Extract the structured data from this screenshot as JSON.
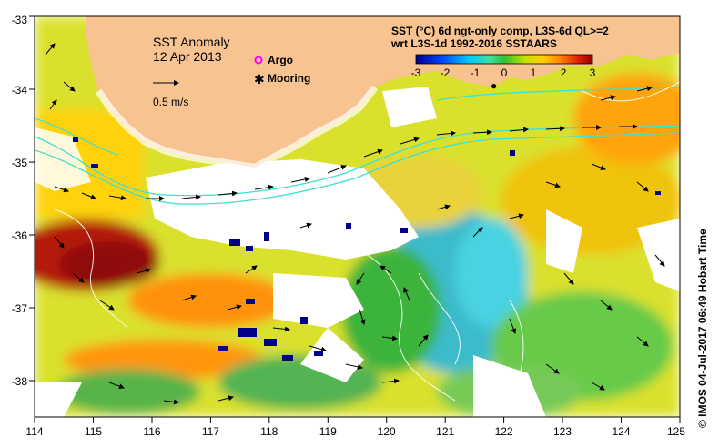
{
  "title": "SST Anomaly",
  "date": "12 Apr 2013",
  "scale_label": "0.5 m/s",
  "legend": {
    "argo": "Argo",
    "mooring": "Mooring",
    "argo_color": "#ff00ff",
    "mooring_color": "#000000"
  },
  "colorbar": {
    "title_line1": "SST (°C) 6d ngt-only comp, L3S-6d QL>=2",
    "title_line2": "wrt L3S-1d 1992-2016 SSTAARS",
    "ticks": [
      "-3",
      "-2",
      "-1",
      "0",
      "1",
      "2",
      "3"
    ],
    "range": [
      -3,
      3
    ]
  },
  "axes": {
    "x_ticks": [
      "114",
      "115",
      "116",
      "117",
      "118",
      "119",
      "120",
      "121",
      "122",
      "123",
      "124",
      "125"
    ],
    "y_ticks": [
      "-33",
      "-34",
      "-35",
      "-36",
      "-37",
      "-38"
    ],
    "lon_range": [
      114,
      125
    ],
    "lat_range": [
      -38.5,
      -33
    ]
  },
  "credit": "© IMOS 04-Jul-2017 06:49 Hobart Time",
  "colors": {
    "land": "#f7c391",
    "ocean_nodata": "#ffffff",
    "cold": "#00008b",
    "warm": "#8b0000",
    "current_contour": "#40e0d0"
  }
}
